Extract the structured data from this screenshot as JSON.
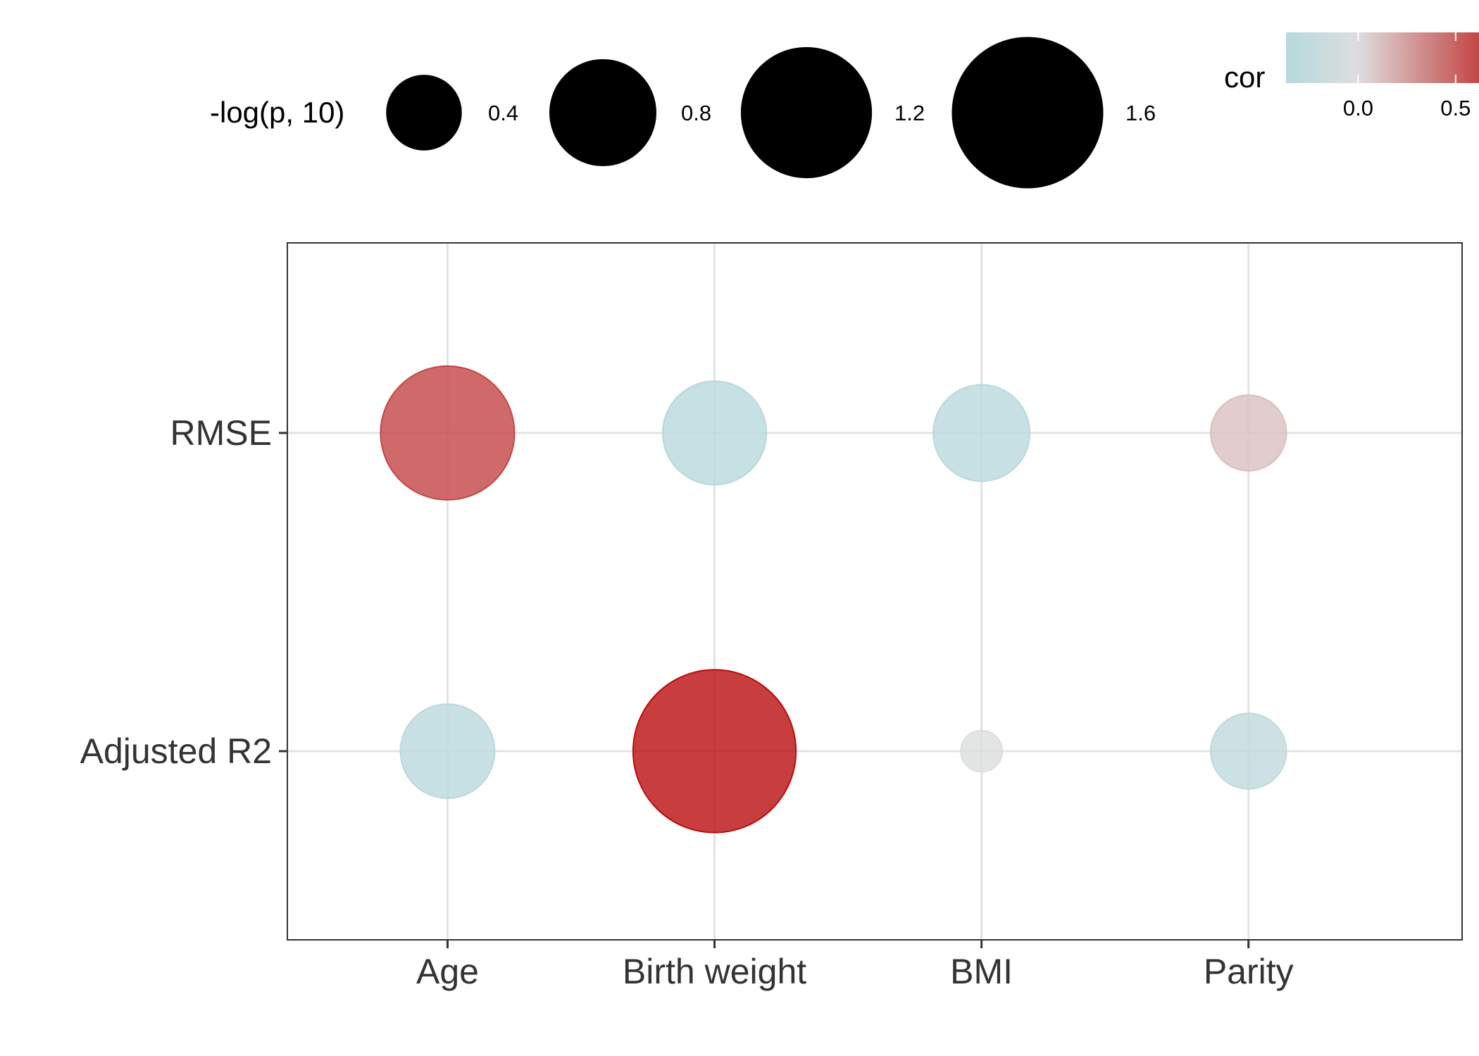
{
  "chart_data": {
    "type": "scatter",
    "subtype": "bubble",
    "x_categories": [
      "Age",
      "Birth weight",
      "BMI",
      "Parity"
    ],
    "y_categories": [
      "RMSE",
      "Adjusted R2"
    ],
    "points": [
      {
        "x": "Age",
        "y": "RMSE",
        "cor": 0.62,
        "neglogp": 1.25
      },
      {
        "x": "Birth weight",
        "y": "RMSE",
        "cor": -0.35,
        "neglogp": 0.75
      },
      {
        "x": "BMI",
        "y": "RMSE",
        "cor": -0.33,
        "neglogp": 0.65
      },
      {
        "x": "Parity",
        "y": "RMSE",
        "cor": 0.12,
        "neglogp": 0.4
      },
      {
        "x": "Age",
        "y": "Adjusted R2",
        "cor": -0.33,
        "neglogp": 0.62
      },
      {
        "x": "Birth weight",
        "y": "Adjusted R2",
        "cor": 0.85,
        "neglogp": 1.85
      },
      {
        "x": "BMI",
        "y": "Adjusted R2",
        "cor": -0.02,
        "neglogp": 0.12
      },
      {
        "x": "Parity",
        "y": "Adjusted R2",
        "cor": -0.28,
        "neglogp": 0.4
      }
    ],
    "size_legend": {
      "title": "-log(p, 10)",
      "breaks": [
        0.4,
        0.8,
        1.2,
        1.6
      ],
      "labels": [
        "0.4",
        "0.8",
        "1.2",
        "1.6"
      ]
    },
    "color_legend": {
      "title": "cor",
      "ticks": [
        0.0,
        0.5
      ],
      "tick_labels": [
        "0.0",
        "0.5"
      ],
      "low_color": "#7ad1db",
      "mid_color": "#dedede",
      "high_color": "#b80000",
      "visible_range": [
        -0.37,
        0.62
      ]
    },
    "color_domain": [
      -0.9,
      0.0,
      0.9
    ],
    "grid": true,
    "legend_position": "top"
  }
}
